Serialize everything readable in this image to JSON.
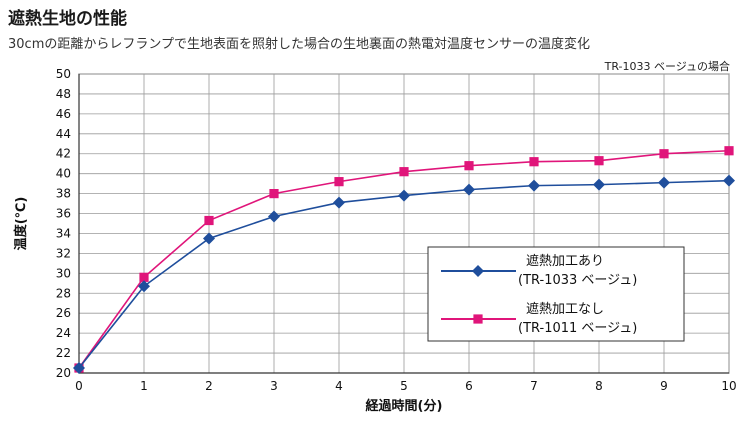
{
  "title": "遮熱生地の性能",
  "subtitle": "30cmの距離からレフランプで生地表面を照射した場合の生地裏面の熱電対温度センサーの温度変化",
  "note": "TR-1033 ベージュの場合",
  "chart_data": {
    "type": "line",
    "x": [
      0,
      1,
      2,
      3,
      4,
      5,
      6,
      7,
      8,
      9,
      10
    ],
    "xlabel": "経過時間(分)",
    "ylabel": "温度(℃)",
    "xlim": [
      0,
      10
    ],
    "ylim": [
      20,
      50
    ],
    "yticks": [
      20,
      22,
      24,
      26,
      28,
      30,
      32,
      34,
      36,
      38,
      40,
      42,
      44,
      46,
      48,
      50
    ],
    "xticks": [
      0,
      1,
      2,
      3,
      4,
      5,
      6,
      7,
      8,
      9,
      10
    ],
    "grid": true,
    "legend_position": "right",
    "series": [
      {
        "name": "遮熱加工あり",
        "name_line2": "(TR-1033 ベージュ)",
        "color": "#1f4e9c",
        "marker": "diamond",
        "values": [
          20.5,
          28.7,
          33.5,
          35.7,
          37.1,
          37.8,
          38.4,
          38.8,
          38.9,
          39.1,
          39.3
        ]
      },
      {
        "name": "遮熱加工なし",
        "name_line2": "(TR-1011 ベージュ)",
        "color": "#e0157a",
        "marker": "square",
        "values": [
          20.5,
          29.6,
          35.3,
          38.0,
          39.2,
          40.2,
          40.8,
          41.2,
          41.3,
          42.0,
          42.3
        ]
      }
    ]
  }
}
